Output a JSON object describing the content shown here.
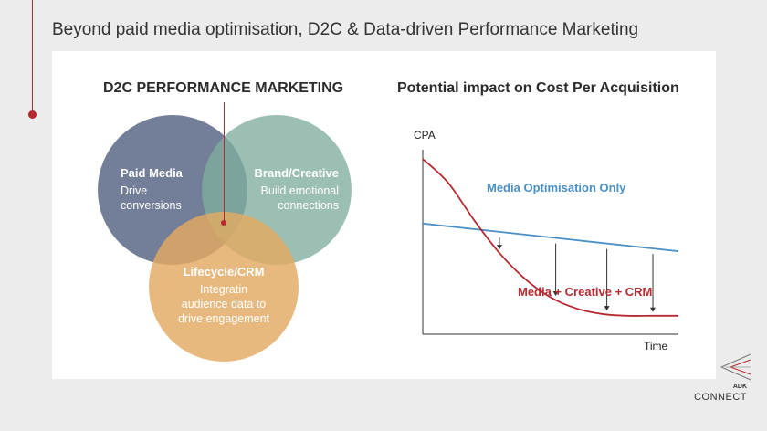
{
  "slide": {
    "title": "Beyond paid media optimisation, D2C & Data-driven Performance Marketing"
  },
  "venn": {
    "heading": "D2C PERFORMANCE MARKETING",
    "circles": [
      {
        "title": "Paid Media",
        "desc": [
          "Drive",
          "conversions"
        ],
        "color": "#5b6787"
      },
      {
        "title": "Brand/Creative",
        "desc": [
          "Build emotional",
          "connections"
        ],
        "color": "#7fae9d"
      },
      {
        "title": "Lifecycle/CRM",
        "desc": [
          "Integratin",
          "audience data to",
          "drive engagement"
        ],
        "color": "#e3aa62"
      }
    ]
  },
  "chart": {
    "heading": "Potential impact on Cost Per Acquisition",
    "ylabel": "CPA",
    "xlabel": "Time"
  },
  "chart_data": {
    "type": "line",
    "series": [
      {
        "name": "Media Optimisation Only",
        "color": "#4a8fc6",
        "x": [
          0,
          1
        ],
        "y": [
          0.6,
          0.45
        ]
      },
      {
        "name": "Media + Creative + CRM",
        "color": "#b52a30",
        "x": [
          0,
          0.1,
          0.2,
          0.3,
          0.4,
          0.5,
          0.6,
          0.7,
          0.8,
          0.9,
          1.0
        ],
        "y": [
          0.95,
          0.82,
          0.62,
          0.44,
          0.3,
          0.2,
          0.14,
          0.11,
          0.1,
          0.1,
          0.1
        ]
      }
    ],
    "arrows_at_x": [
      0.3,
      0.52,
      0.72,
      0.9
    ]
  },
  "logo": {
    "brand_small": "ADK",
    "brand_large": "CONNECT",
    "color": "#b52a30"
  }
}
